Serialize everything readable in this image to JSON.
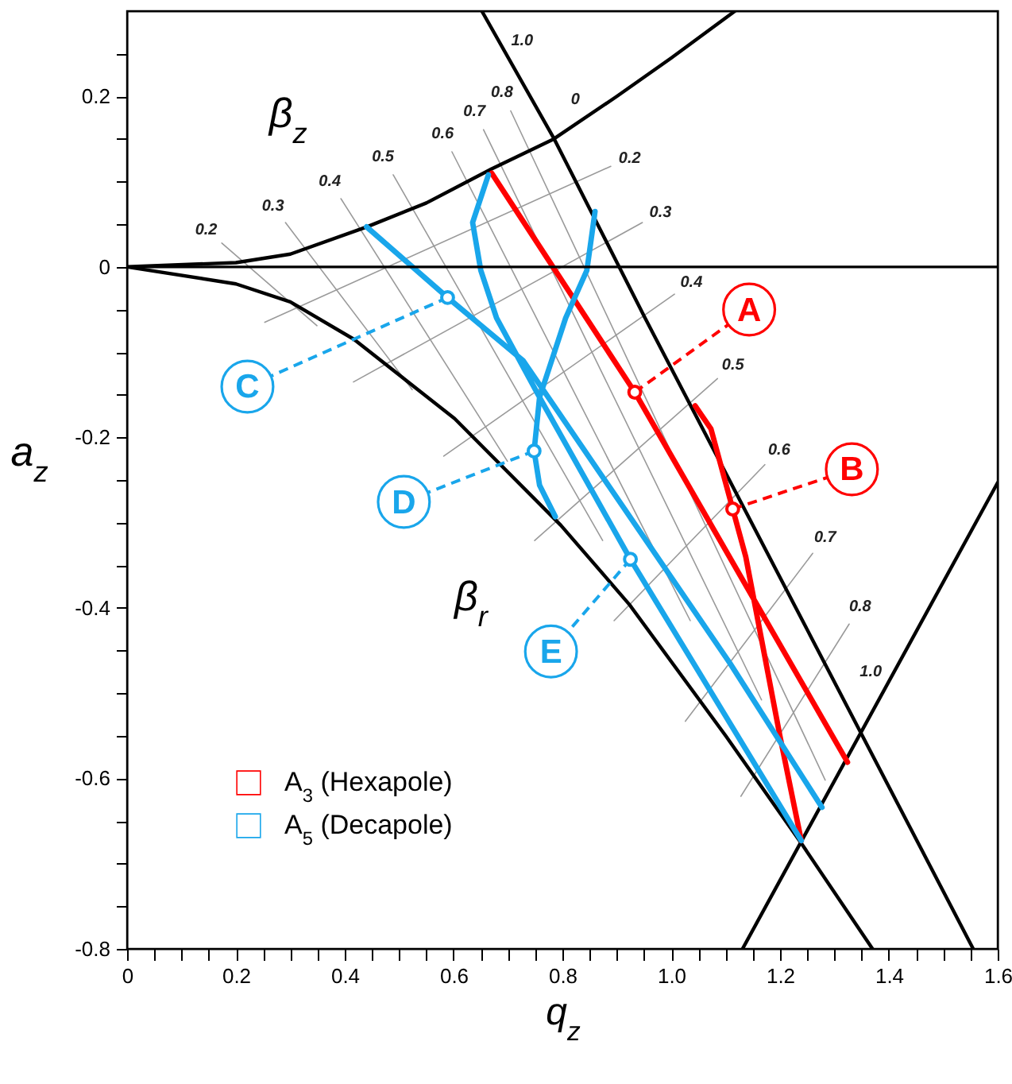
{
  "chart_data": {
    "type": "line",
    "xlabel": "q$_{z}$",
    "ylabel": "a$_{z}$",
    "xlim": [
      0,
      1.6
    ],
    "ylim": [
      -0.8,
      0.3
    ],
    "xticks": [
      0,
      {
        "value": 0.05,
        "label": null
      },
      {
        "value": 0.1,
        "label": null
      },
      {
        "value": 0.15,
        "label": null
      },
      0.2,
      {
        "value": 0.25,
        "label": null
      },
      {
        "value": 0.3,
        "label": null
      },
      {
        "value": 0.35,
        "label": null
      },
      0.4,
      {
        "value": 0.45,
        "label": null
      },
      {
        "value": 0.5,
        "label": null
      },
      {
        "value": 0.55,
        "label": null
      },
      0.6,
      {
        "value": 0.65,
        "label": null
      },
      {
        "value": 0.7,
        "label": null
      },
      {
        "value": 0.75,
        "label": null
      },
      0.8,
      {
        "value": 0.85,
        "label": null
      },
      {
        "value": 0.9,
        "label": null
      },
      {
        "value": 0.95,
        "label": null
      },
      {
        "value": 1,
        "label": "1.0"
      },
      {
        "value": 1.05,
        "label": null
      },
      {
        "value": 1.1,
        "label": null
      },
      {
        "value": 1.15,
        "label": null
      },
      1.2,
      {
        "value": 1.25,
        "label": null
      },
      {
        "value": 1.3,
        "label": null
      },
      {
        "value": 1.35,
        "label": null
      },
      1.4,
      {
        "value": 1.45,
        "label": null
      },
      {
        "value": 1.5,
        "label": null
      },
      {
        "value": 1.55,
        "label": null
      },
      1.6
    ],
    "yticks": [
      -0.8,
      {
        "value": -0.75,
        "label": null
      },
      {
        "value": -0.7,
        "label": null
      },
      {
        "value": -0.65,
        "label": null
      },
      -0.6,
      {
        "value": -0.55,
        "label": null
      },
      {
        "value": -0.5,
        "label": null
      },
      {
        "value": -0.45,
        "label": null
      },
      -0.4,
      {
        "value": -0.35,
        "label": null
      },
      {
        "value": -0.3,
        "label": null
      },
      {
        "value": -0.25,
        "label": null
      },
      -0.2,
      {
        "value": -0.15,
        "label": null
      },
      {
        "value": -0.1,
        "label": null
      },
      {
        "value": -0.05,
        "label": null
      },
      0,
      {
        "value": 0.05,
        "label": null
      },
      {
        "value": 0.1,
        "label": null
      },
      {
        "value": 0.15,
        "label": null
      },
      0.2,
      {
        "value": 0.25,
        "label": null
      }
    ],
    "legend": "bottom left",
    "ref_lines": [
      {
        "axis": "y",
        "value": 0,
        "color": "#000000"
      }
    ],
    "series": [
      {
        "color": "#9a9a9a",
        "x": [
          0.174,
          0.349
        ],
        "values": [
          0.028,
          -0.069
        ]
      },
      {
        "color": "#9a9a9a",
        "x": [
          0.291,
          0.524
        ],
        "values": [
          0.052,
          -0.144
        ]
      },
      {
        "color": "#9a9a9a",
        "x": [
          0.393,
          0.699
        ],
        "values": [
          0.08,
          -0.228
        ]
      },
      {
        "color": "#9a9a9a",
        "x": [
          0.489,
          0.874
        ],
        "values": [
          0.108,
          -0.321
        ]
      },
      {
        "color": "#9a9a9a",
        "x": [
          0.597,
          1.035
        ],
        "values": [
          0.135,
          -0.415
        ]
      },
      {
        "color": "#9a9a9a",
        "x": [
          0.655,
          1.166
        ],
        "values": [
          0.161,
          -0.508
        ]
      },
      {
        "color": "#9a9a9a",
        "x": [
          0.705,
          1.283
        ],
        "values": [
          0.183,
          -0.602
        ]
      },
      {
        "color": "#9a9a9a",
        "x": [
          0.889,
          0.253
        ],
        "values": [
          0.118,
          -0.065
        ]
      },
      {
        "color": "#9a9a9a",
        "x": [
          0.947,
          0.416
        ],
        "values": [
          0.052,
          -0.135
        ]
      },
      {
        "color": "#9a9a9a",
        "x": [
          1.006,
          0.582
        ],
        "values": [
          -0.032,
          -0.222
        ]
      },
      {
        "color": "#9a9a9a",
        "x": [
          1.085,
          0.749
        ],
        "values": [
          -0.131,
          -0.321
        ]
      },
      {
        "color": "#9a9a9a",
        "x": [
          1.172,
          0.895
        ],
        "values": [
          -0.232,
          -0.415
        ]
      },
      {
        "color": "#9a9a9a",
        "x": [
          1.26,
          1.026
        ],
        "values": [
          -0.336,
          -0.533
        ]
      },
      {
        "color": "#9a9a9a",
        "x": [
          1.327,
          1.128
        ],
        "values": [
          -0.419,
          -0.621
        ]
      },
      {
        "color": "#000000",
        "x": [
          0,
          0.2,
          0.3,
          0.441,
          0.55,
          0.67,
          0.784,
          0.9,
          1.0,
          1.117
        ],
        "values": [
          0,
          0.005,
          0.015,
          0.047,
          0.075,
          0.115,
          0.15,
          0.2,
          0.245,
          0.3
        ]
      },
      {
        "color": "#000000",
        "x": [
          0,
          0.2,
          0.3,
          0.417,
          0.602,
          0.797,
          0.923,
          1.1,
          1.24,
          1.37
        ],
        "values": [
          0,
          -0.02,
          -0.041,
          -0.085,
          -0.178,
          -0.303,
          -0.396,
          -0.55,
          -0.677,
          -0.8
        ]
      },
      {
        "color": "#000000",
        "x": [
          0.652,
          0.785,
          0.952,
          1.555
        ],
        "values": [
          0.3,
          0.15,
          -0.06,
          -0.8
        ]
      },
      {
        "color": "#000000",
        "x": [
          1.131,
          1.6
        ],
        "values": [
          -0.8,
          -0.253
        ]
      },
      {
        "name": "A$_{3}$ (Hexapole)",
        "color": "#ff0000",
        "x": [
          0.67,
          0.933,
          1.324,
          null,
          1.044,
          1.073,
          1.113,
          1.137,
          1.2,
          1.239
        ],
        "values": [
          0.11,
          -0.147,
          -0.581,
          null,
          -0.163,
          -0.19,
          -0.284,
          -0.34,
          -0.551,
          -0.673
        ]
      },
      {
        "name": "A$_{5}$ (Decapole)",
        "color": "#19a6eb",
        "x": [
          0.44,
          0.589,
          0.728,
          1.108,
          1.277,
          null,
          0.664,
          0.635,
          0.65,
          0.679,
          0.758,
          0.925,
          1.239,
          null,
          0.86,
          0.845,
          0.806,
          0.758,
          0.748,
          0.758,
          0.787
        ],
        "values": [
          0.047,
          -0.036,
          -0.11,
          -0.465,
          -0.634,
          null,
          0.108,
          0.052,
          -0.004,
          -0.06,
          -0.153,
          -0.343,
          -0.673,
          null,
          0.065,
          -0.004,
          -0.06,
          -0.153,
          -0.216,
          -0.256,
          -0.293
        ]
      }
    ],
    "annotations": [
      {
        "text": "0.2",
        "x": 0.174,
        "y": 0.028
      },
      {
        "text": "0.3",
        "x": 0.291,
        "y": 0.052
      },
      {
        "text": "0.4",
        "x": 0.393,
        "y": 0.08
      },
      {
        "text": "0.5",
        "x": 0.489,
        "y": 0.108
      },
      {
        "text": "0.6",
        "x": 0.597,
        "y": 0.135
      },
      {
        "text": "0.7",
        "x": 0.655,
        "y": 0.161
      },
      {
        "text": "0.8",
        "x": 0.705,
        "y": 0.183
      },
      {
        "text": "1.0",
        "x": 0.693,
        "y": 0.254
      },
      {
        "text": "0",
        "x": 0.845,
        "y": 0.176
      },
      {
        "text": "0.2",
        "x": 0.889,
        "y": 0.118
      },
      {
        "text": "0.3",
        "x": 0.947,
        "y": 0.052
      },
      {
        "text": "0.4",
        "x": 1.006,
        "y": -0.032
      },
      {
        "text": "0.5",
        "x": 1.085,
        "y": -0.131
      },
      {
        "text": "0.6",
        "x": 1.172,
        "y": -0.232
      },
      {
        "text": "0.7",
        "x": 1.26,
        "y": -0.336
      },
      {
        "text": "0.8",
        "x": 1.327,
        "y": -0.419
      },
      {
        "text": "1.0",
        "x": 1.4,
        "y": -0.486
      },
      "β$_{z}$",
      "β$_{r}$",
      {
        "text": "A",
        "x": 0.933,
        "y": -0.147
      },
      {
        "text": "B",
        "x": 1.113,
        "y": -0.284
      },
      {
        "text": "C",
        "x": 0.589,
        "y": -0.036
      },
      {
        "text": "D",
        "x": 0.748,
        "y": -0.216
      },
      {
        "text": "E",
        "x": 0.925,
        "y": -0.343
      }
    ]
  }
}
